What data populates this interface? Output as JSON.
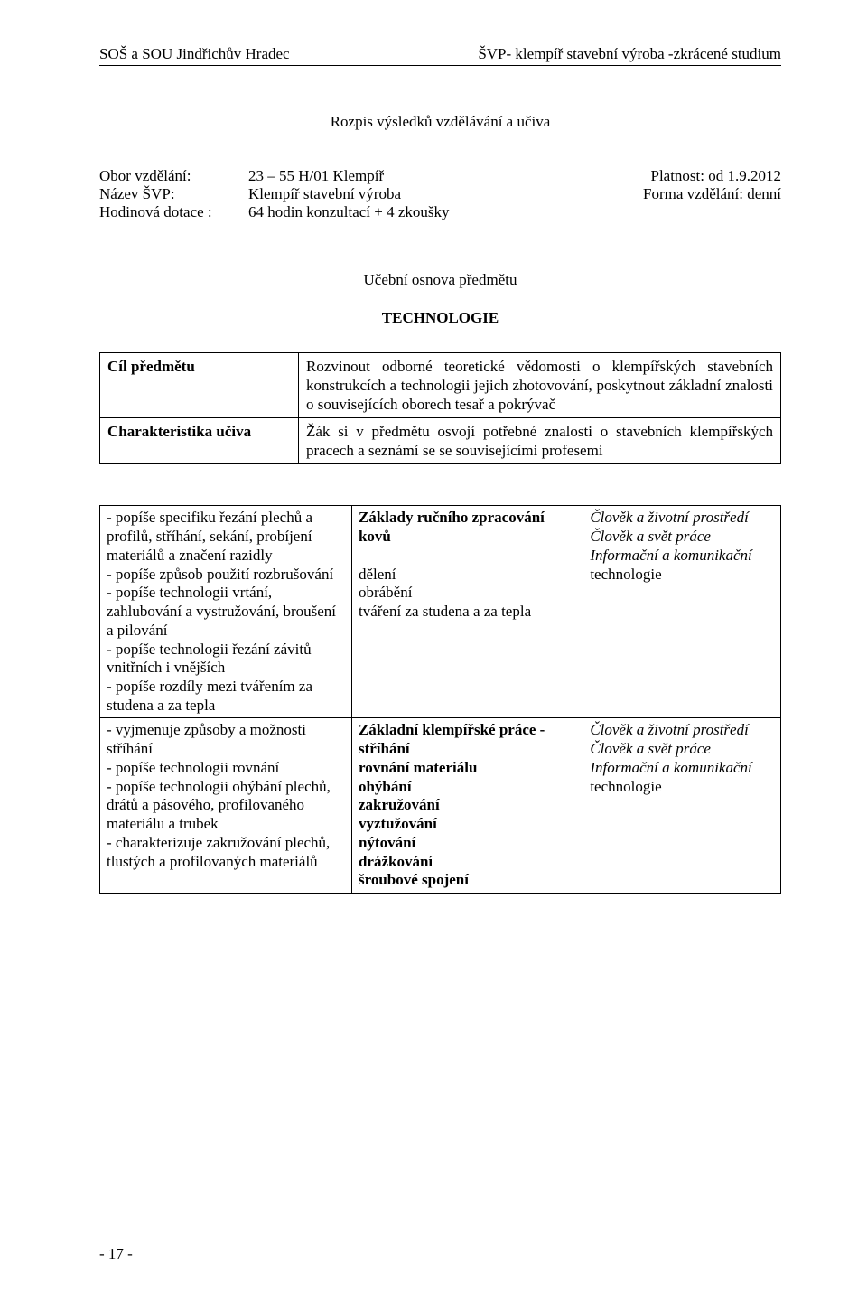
{
  "header": {
    "left": "SOŠ a SOU  Jindřichův Hradec",
    "right": "ŠVP- klempíř stavební výroba -zkrácené studium"
  },
  "title": "Rozpis výsledků vzdělávání a učiva",
  "info": {
    "rows": [
      {
        "label": "Obor vzdělání:",
        "value": "23 – 55  H/01  Klempíř",
        "right": "Platnost:   od  1.9.2012"
      },
      {
        "label": "Název ŠVP:",
        "value": "Klempíř stavební výroba",
        "right": "Forma vzdělání:  denní"
      },
      {
        "label": "Hodinová dotace :",
        "value": "64 hodin konzultací + 4 zkoušky",
        "right": ""
      }
    ]
  },
  "subject": {
    "line1": "Učební osnova předmětu",
    "line2": "TECHNOLOGIE"
  },
  "table1": {
    "rows": [
      {
        "label": "Cíl předmětu",
        "text": "Rozvinout odborné teoretické vědomosti o klempířských stavebních konstrukcích a technologii jejich zhotovování, poskytnout základní znalosti o souvisejících oborech tesař a pokrývač"
      },
      {
        "label": "Charakteristika učiva",
        "text": "Žák si v předmětu osvojí potřebné znalosti o stavebních klempířských pracech a seznámí se se souvisejícími profesemi"
      }
    ]
  },
  "table2": {
    "rows": [
      {
        "c1": "- popíše specifiku řezání plechů a profilů, stříhání, sekání, probíjení materiálů a značení razidly\n- popíše způsob použití rozbrušování\n- popíše technologii vrtání, zahlubování a vystružování, broušení a pilování\n- popíše technologii řezání závitů vnitřních i vnějších\n- popíše rozdíly mezi tvářením za studena a za tepla",
        "c2_title": "Základy ručního zpracování kovů",
        "c2_body": "\ndělení\nobrábění\ntváření za studena a za tepla",
        "c3_italic": "Člověk a životní prostředí\nČlověk a svět práce\nInformační a komunikační",
        "c3_plain": "technologie"
      },
      {
        "c1": "- vyjmenuje způsoby a možnosti stříhání\n- popíše technologii rovnání\n- popíše technologii ohýbání plechů, drátů a pásového, profilovaného materiálu a trubek\n- charakterizuje zakružování plechů, tlustých a profilovaných materiálů",
        "c2_title": "Základní klempířské práce - stříhání",
        "c2_body": "rovnání materiálu\nohýbání\nzakružování\nvyztužování\nnýtování\ndrážkování\nšroubové spojení",
        "c3_italic": "Člověk a životní prostředí\nČlověk a svět práce\nInformační a komunikační",
        "c3_plain": "technologie"
      }
    ]
  },
  "footer": "- 17 -"
}
